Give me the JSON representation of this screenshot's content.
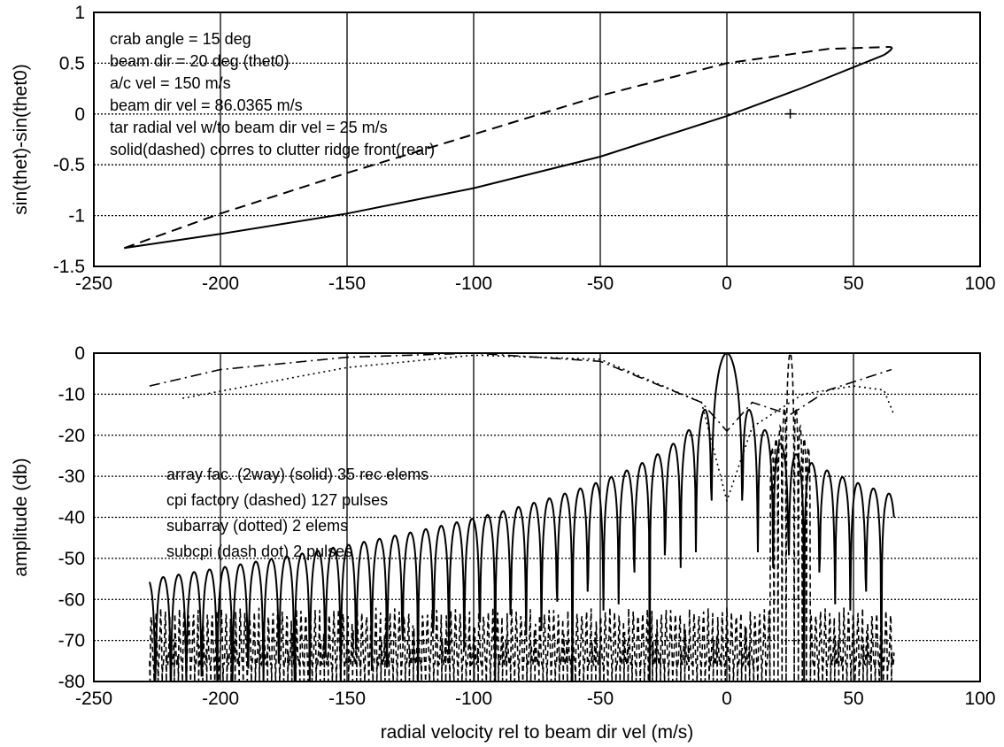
{
  "chart_data": [
    {
      "type": "line",
      "xlim": [
        -250,
        100
      ],
      "ylim": [
        -1.5,
        1
      ],
      "x_ticks": [
        "-250",
        "-200",
        "-150",
        "-100",
        "-50",
        "0",
        "50",
        "100"
      ],
      "y_ticks": [
        "1",
        "0.5",
        "0",
        "-0.5",
        "-1",
        "-1.5"
      ],
      "xlabel": "",
      "ylabel": "sin(thet)-sin(thet0)",
      "grid": true,
      "annotations": [
        "crab angle = 15 deg",
        "beam dir = 20 deg (thet0)",
        "a/c vel = 150 m/s",
        "beam dir vel = 86.0365 m/s",
        "tar radial vel w/to beam dir vel = 25 m/s",
        "solid(dashed) corres to clutter ridge front(rear)"
      ],
      "series": [
        {
          "style": "solid",
          "x": [
            -238,
            -200,
            -150,
            -100,
            -50,
            0,
            30,
            62
          ],
          "y": [
            -1.32,
            -1.18,
            -0.98,
            -0.73,
            -0.42,
            -0.02,
            0.26,
            0.58
          ]
        },
        {
          "style": "dashed",
          "x": [
            -238,
            -200,
            -150,
            -100,
            -50,
            0,
            40,
            64
          ],
          "y": [
            -1.32,
            -0.98,
            -0.58,
            -0.2,
            0.18,
            0.5,
            0.64,
            0.66
          ]
        }
      ],
      "marker": {
        "symbol": "+",
        "x": 25,
        "y": 0
      }
    },
    {
      "type": "line",
      "xlim": [
        -250,
        100
      ],
      "ylim": [
        -80,
        0
      ],
      "x_ticks": [
        "-250",
        "-200",
        "-150",
        "-100",
        "-50",
        "0",
        "50",
        "100"
      ],
      "y_ticks": [
        "0",
        "-10",
        "-20",
        "-30",
        "-40",
        "-50",
        "-60",
        "-70",
        "-80"
      ],
      "xlabel": "radial velocity rel to beam dir vel (m/s)",
      "ylabel": "amplitude (db)",
      "grid": true,
      "legend_text": [
        "array fac. (2way) (solid) 35 rec elems",
        "cpi factory (dashed) 127 pulses",
        "subarray (dotted) 2 elems",
        "subcpi (dash dot) 2 pulses"
      ],
      "series_params": [
        {
          "style": "solid",
          "main_lobe_x": 0,
          "lobe_spacing": 6.1
        },
        {
          "style": "dashed",
          "main_lobe_x": 25,
          "lobe_spacing": 1.6
        },
        {
          "style": "dotted",
          "x": [
            -215,
            -150,
            -100,
            -50,
            -10,
            0,
            10,
            30,
            50,
            62,
            66
          ],
          "y": [
            -11,
            -3.5,
            -0.5,
            -1.5,
            -12,
            -36,
            -18,
            -10,
            -8,
            -9,
            -15
          ]
        },
        {
          "style": "dash-dot",
          "x": [
            -228,
            -200,
            -150,
            -100,
            -50,
            -10,
            0,
            10,
            25,
            40,
            55,
            65
          ],
          "y": [
            -8,
            -4,
            -1,
            0,
            -2,
            -12,
            -19,
            -12,
            -15,
            -9,
            -6,
            -4
          ]
        }
      ],
      "x_range": [
        -228,
        66
      ]
    }
  ]
}
